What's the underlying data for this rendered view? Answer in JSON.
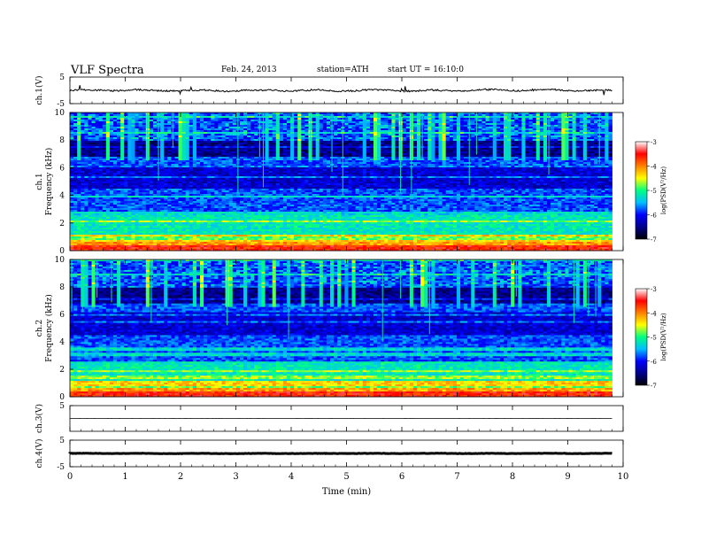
{
  "header": {
    "title": "VLF Spectra",
    "date": "Feb. 24, 2013",
    "station": "station=ATH",
    "start": "start UT =   16:10:0"
  },
  "chart_data": [
    {
      "type": "line",
      "ylabel": "ch.1(V)",
      "ylim": [
        -5,
        5
      ],
      "yticks": [
        5,
        -5
      ],
      "baseline": 0
    },
    {
      "type": "heatmap",
      "ylabel": "Frequency (kHz)",
      "channel_label": "ch.1",
      "ylim": [
        0,
        10
      ],
      "yticks": [
        0,
        2,
        4,
        6,
        8,
        10
      ],
      "colorbar": {
        "label": "log(PSD(V²/Hz)",
        "range": [
          -7,
          -3
        ],
        "ticks": [
          -3,
          -4,
          -5,
          -6,
          -7
        ]
      }
    },
    {
      "type": "heatmap",
      "ylabel": "Frequency (kHz)",
      "channel_label": "ch.2",
      "ylim": [
        0,
        10
      ],
      "yticks": [
        0,
        2,
        4,
        6,
        8,
        10
      ],
      "colorbar": {
        "label": "log(PSD(V²/Hz)",
        "range": [
          -7,
          -3
        ],
        "ticks": [
          -3,
          -4,
          -5,
          -6,
          -7
        ]
      }
    },
    {
      "type": "line",
      "ylabel": "ch.3(V)",
      "ylim": [
        -5,
        5
      ],
      "yticks": [
        5
      ],
      "baseline": 0
    },
    {
      "type": "line",
      "ylabel": "ch.4(V)",
      "ylim": [
        -5,
        5
      ],
      "yticks": [
        5,
        -5
      ],
      "baseline": 0
    }
  ],
  "xaxis": {
    "label": "Time (min)",
    "range": [
      0,
      10
    ],
    "ticks": [
      0,
      1,
      2,
      3,
      4,
      5,
      6,
      7,
      8,
      9,
      10
    ],
    "data_end": 9.8
  },
  "colors": {
    "colormap": [
      "#000000",
      "#00008b",
      "#0000ff",
      "#00bfff",
      "#00ff80",
      "#ffff00",
      "#ff8000",
      "#ff0000",
      "#ffffff"
    ]
  }
}
